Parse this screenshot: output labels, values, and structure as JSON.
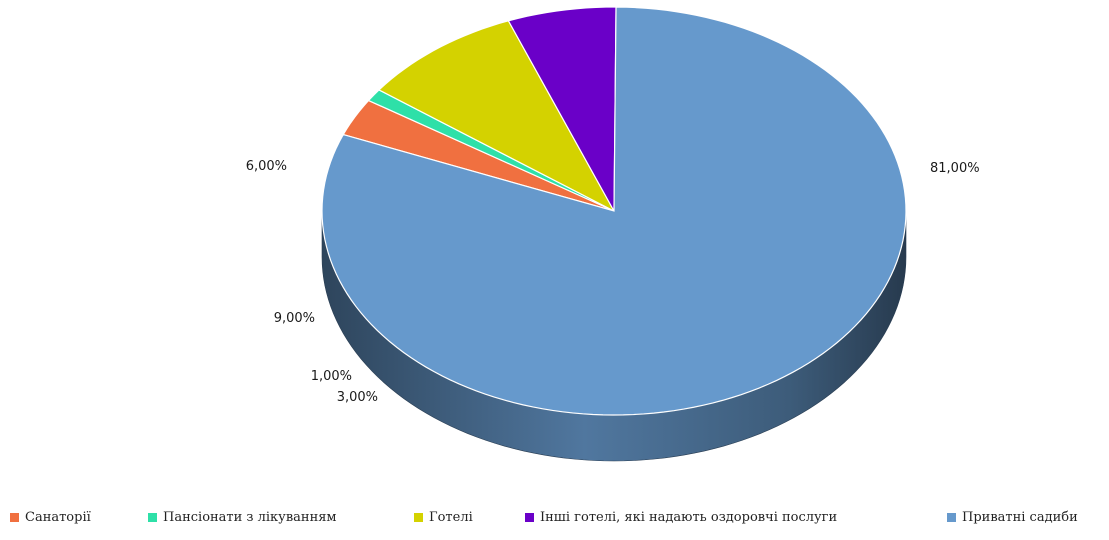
{
  "chart_data": {
    "type": "pie",
    "title": "",
    "style": "3d-tilted",
    "categories": [
      "Санаторії",
      "Пансіонати з лікуванням",
      "Готелі",
      "Інші готелі, які надають оздоровчі послуги",
      "Приватні садиби"
    ],
    "values": [
      3,
      1,
      9,
      6,
      81
    ],
    "value_labels": [
      "3,00%",
      "1,00%",
      "9,00%",
      "6,00%",
      "81,00%"
    ],
    "colors": [
      "#f07040",
      "#2ee0a8",
      "#d4d200",
      "#6a00c8",
      "#6699cc"
    ],
    "legend": "bottom"
  }
}
